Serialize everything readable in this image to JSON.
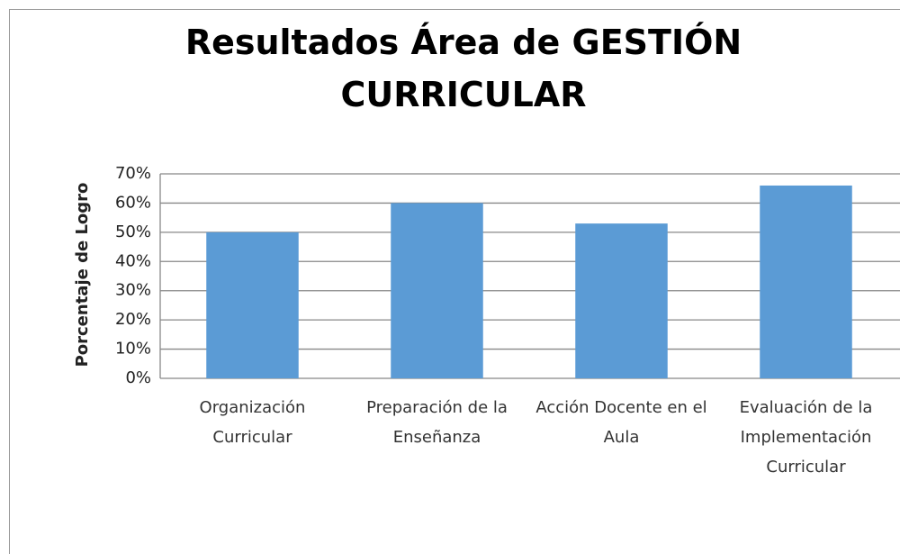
{
  "chart_data": {
    "type": "bar",
    "title": "Resultados Área de GESTIÓN CURRICULAR",
    "y_label": "Porcentaje de Logro",
    "categories": [
      "Organización Curricular",
      "Preparación de la Enseñanza",
      "Acción Docente en el Aula",
      "Evaluación de la Implementación Curricular"
    ],
    "values": [
      50,
      60,
      53,
      66
    ],
    "color": "#5b9bd5",
    "ylim": [
      0,
      70
    ],
    "yticks": [
      {
        "value": 0,
        "label": "0%"
      },
      {
        "value": 10,
        "label": "10%"
      },
      {
        "value": 20,
        "label": "20%"
      },
      {
        "value": 30,
        "label": "30%"
      },
      {
        "value": 40,
        "label": "40%"
      },
      {
        "value": 50,
        "label": "50%"
      },
      {
        "value": 60,
        "label": "60%"
      },
      {
        "value": 70,
        "label": "70%"
      }
    ],
    "grid": true
  }
}
